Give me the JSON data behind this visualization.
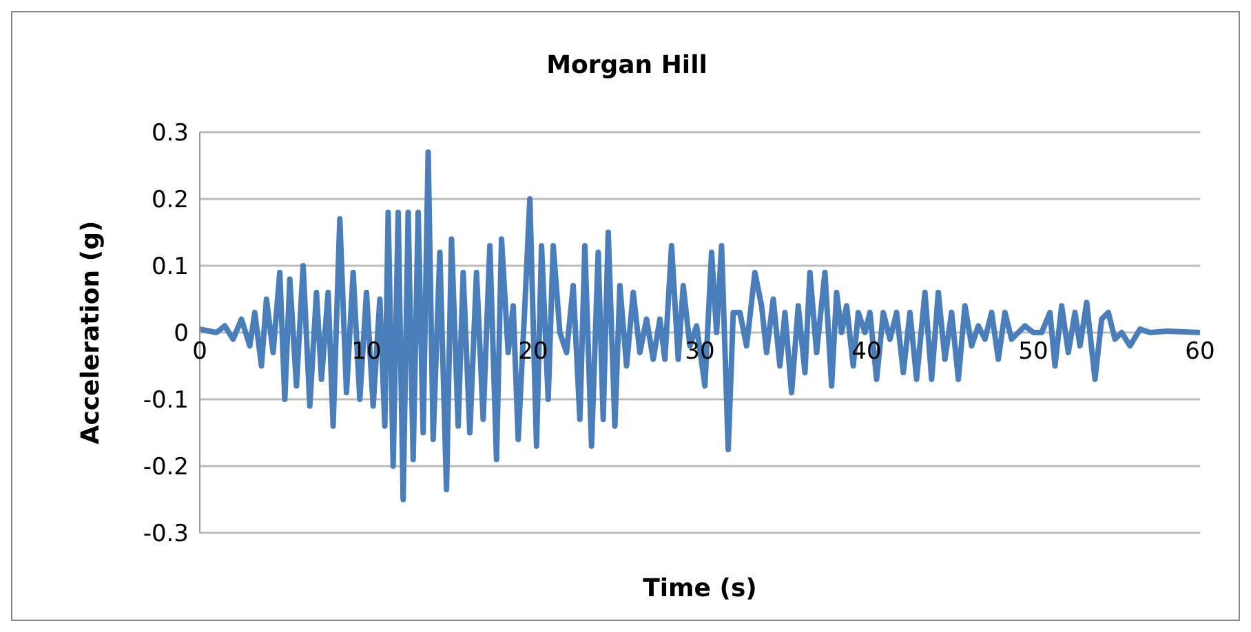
{
  "chart_data": {
    "type": "line",
    "title": "Morgan Hill",
    "xlabel": "Time (s)",
    "ylabel": "Acceleration (g)",
    "xlim": [
      0,
      60
    ],
    "xticks": [
      0,
      10,
      20,
      30,
      40,
      50,
      60
    ],
    "ylim": [
      -0.3,
      0.3
    ],
    "yticks": [
      -0.3,
      -0.2,
      -0.1,
      0,
      0.1,
      0.2,
      0.3
    ],
    "grid": "y",
    "legend": false,
    "marker": "none",
    "line_style": "solid",
    "series": [
      {
        "color": "#4a7ebb",
        "x": [
          0,
          1,
          1.5,
          2,
          2.5,
          3,
          3.3,
          3.7,
          4,
          4.4,
          4.8,
          5.1,
          5.4,
          5.8,
          6.2,
          6.6,
          7,
          7.3,
          7.7,
          8,
          8.4,
          8.8,
          9.2,
          9.6,
          10,
          10.4,
          10.8,
          11.1,
          11.3,
          11.6,
          11.9,
          12.2,
          12.5,
          12.8,
          13.1,
          13.4,
          13.7,
          14,
          14.4,
          14.8,
          15.1,
          15.5,
          15.8,
          16.2,
          16.6,
          17,
          17.4,
          17.8,
          18.1,
          18.5,
          18.8,
          19.1,
          19.5,
          19.8,
          20.2,
          20.5,
          20.9,
          21.2,
          21.6,
          22,
          22.4,
          22.8,
          23.1,
          23.5,
          23.9,
          24.2,
          24.5,
          24.9,
          25.2,
          25.6,
          26,
          26.4,
          26.8,
          27.2,
          27.6,
          27.9,
          28.3,
          28.7,
          29,
          29.4,
          29.8,
          30.3,
          30.7,
          31,
          31.3,
          31.7,
          32,
          32.4,
          32.8,
          33.3,
          33.7,
          34,
          34.4,
          34.8,
          35.1,
          35.5,
          35.9,
          36.3,
          36.6,
          37,
          37.5,
          37.9,
          38.2,
          38.5,
          38.8,
          39.2,
          39.5,
          39.9,
          40.2,
          40.6,
          41,
          41.4,
          41.8,
          42.2,
          42.6,
          43,
          43.5,
          43.9,
          44.3,
          44.7,
          45.1,
          45.5,
          45.9,
          46.3,
          46.7,
          47.1,
          47.5,
          47.9,
          48.3,
          48.7,
          49.1,
          49.5,
          50,
          50.5,
          51,
          51.3,
          51.7,
          52.1,
          52.5,
          52.8,
          53.2,
          53.7,
          54.1,
          54.5,
          54.9,
          55.3,
          55.8,
          56.4,
          57,
          58,
          60
        ],
        "values": [
          0.005,
          0,
          0.01,
          -0.01,
          0.02,
          -0.02,
          0.03,
          -0.05,
          0.05,
          -0.03,
          0.09,
          -0.1,
          0.08,
          -0.08,
          0.1,
          -0.11,
          0.06,
          -0.07,
          0.06,
          -0.14,
          0.17,
          -0.09,
          0.09,
          -0.1,
          0.06,
          -0.11,
          0.05,
          -0.14,
          0.18,
          -0.2,
          0.18,
          -0.25,
          0.18,
          -0.19,
          0.18,
          -0.15,
          0.27,
          -0.16,
          0.12,
          -0.235,
          0.14,
          -0.14,
          0.09,
          -0.15,
          0.09,
          -0.13,
          0.13,
          -0.19,
          0.14,
          -0.03,
          0.04,
          -0.16,
          0.04,
          0.2,
          -0.17,
          0.13,
          -0.1,
          0.13,
          0,
          -0.03,
          0.07,
          -0.13,
          0.13,
          -0.17,
          0.12,
          -0.13,
          0.15,
          -0.14,
          0.07,
          -0.05,
          0.06,
          -0.03,
          0.02,
          -0.04,
          0.02,
          -0.04,
          0.13,
          -0.04,
          0.07,
          -0.02,
          0.01,
          -0.08,
          0.12,
          0,
          0.13,
          -0.175,
          0.03,
          0.03,
          -0.02,
          0.09,
          0.04,
          -0.03,
          0.05,
          -0.05,
          0.03,
          -0.09,
          0.04,
          -0.06,
          0.09,
          -0.03,
          0.09,
          -0.08,
          0.06,
          0,
          0.04,
          -0.05,
          0.03,
          0,
          0.03,
          -0.07,
          0.03,
          -0.01,
          0.03,
          -0.06,
          0.03,
          -0.07,
          0.06,
          -0.07,
          0.06,
          -0.04,
          0.03,
          -0.07,
          0.04,
          -0.02,
          0.01,
          -0.01,
          0.03,
          -0.04,
          0.03,
          -0.01,
          0,
          0.01,
          0,
          0,
          0.03,
          -0.05,
          0.04,
          -0.03,
          0.03,
          -0.02,
          0.045,
          -0.07,
          0.02,
          0.03,
          -0.01,
          0,
          -0.02,
          0.005,
          0,
          0.002,
          0
        ]
      }
    ]
  }
}
